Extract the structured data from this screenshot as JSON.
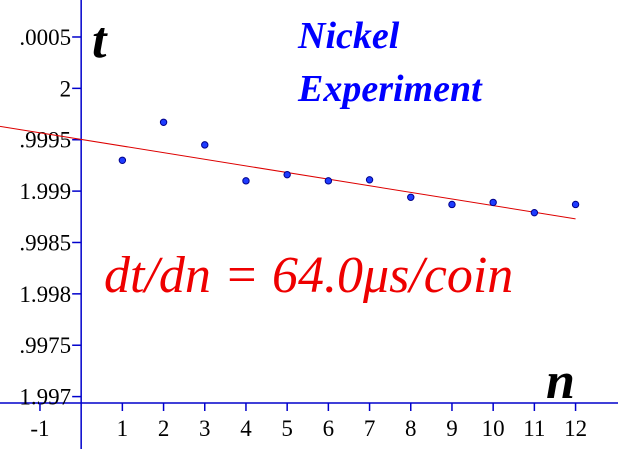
{
  "chart_data": {
    "type": "scatter",
    "annotations": [
      "Nickel",
      "Experiment",
      "dt/dn = 64.0μs/coin"
    ],
    "x_label": "n",
    "y_label": "t",
    "x": [
      1,
      2,
      3,
      4,
      5,
      6,
      7,
      8,
      9,
      10,
      11,
      12
    ],
    "series": [
      {
        "color": "#00008b",
        "values": [
          1.9993,
          1.99967,
          1.99945,
          1.9991,
          1.99916,
          1.9991,
          1.99911,
          1.99894,
          1.99887,
          1.99889,
          1.99879,
          1.99887
        ]
      }
    ],
    "fit": {
      "color": "#dd0000",
      "x": [
        -1.97,
        12
      ],
      "values": [
        1.99963,
        1.99873
      ]
    },
    "axis_color": "#0000cc",
    "xlim": [
      -1.97,
      13.03
    ],
    "ylim": [
      1.99649,
      2.00086
    ],
    "xticks": [
      -1,
      1,
      2,
      3,
      4,
      5,
      6,
      7,
      8,
      9,
      10,
      11,
      12
    ],
    "yticks": [
      {
        "value": 1.997,
        "label": "1.997"
      },
      {
        "value": 1.9975,
        "label": ".9975"
      },
      {
        "value": 1.998,
        "label": "1.998"
      },
      {
        "value": 1.9985,
        "label": ".9985"
      },
      {
        "value": 1.999,
        "label": "1.999"
      },
      {
        "value": 1.9995,
        "label": ".9995"
      },
      2,
      {
        "value": 2.0005,
        "label": ".0005"
      }
    ]
  }
}
